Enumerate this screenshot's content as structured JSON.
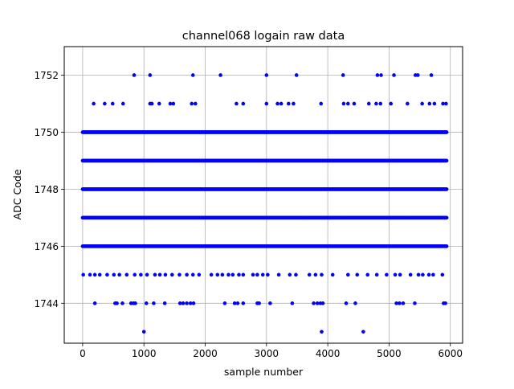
{
  "chart_data": {
    "type": "scatter",
    "title": "channel068 logain raw data",
    "xlabel": "sample number",
    "ylabel": "ADC Code",
    "xlim": [
      -300,
      6200
    ],
    "ylim": [
      1742.6,
      1753.0
    ],
    "xticks": [
      0,
      1000,
      2000,
      3000,
      4000,
      5000,
      6000
    ],
    "xtick_labels": [
      "0",
      "1000",
      "2000",
      "3000",
      "4000",
      "5000",
      "6000"
    ],
    "yticks": [
      1744,
      1746,
      1748,
      1750,
      1752
    ],
    "ytick_labels": [
      "1744",
      "1746",
      "1748",
      "1750",
      "1752"
    ],
    "grid": true,
    "marker_color": "#0000ff",
    "series": [
      {
        "points": [
          [
            1000,
            1743
          ],
          [
            3900,
            1743
          ],
          [
            4580,
            1743
          ],
          [
            200,
            1744
          ],
          [
            530,
            1744
          ],
          [
            560,
            1744
          ],
          [
            650,
            1744
          ],
          [
            790,
            1744
          ],
          [
            830,
            1744
          ],
          [
            860,
            1744
          ],
          [
            1040,
            1744
          ],
          [
            1160,
            1744
          ],
          [
            1340,
            1744
          ],
          [
            1590,
            1744
          ],
          [
            1640,
            1744
          ],
          [
            1700,
            1744
          ],
          [
            1760,
            1744
          ],
          [
            1810,
            1744
          ],
          [
            2320,
            1744
          ],
          [
            2480,
            1744
          ],
          [
            2530,
            1744
          ],
          [
            2620,
            1744
          ],
          [
            2850,
            1744
          ],
          [
            2880,
            1744
          ],
          [
            3060,
            1744
          ],
          [
            3420,
            1744
          ],
          [
            3770,
            1744
          ],
          [
            3830,
            1744
          ],
          [
            3880,
            1744
          ],
          [
            3920,
            1744
          ],
          [
            4300,
            1744
          ],
          [
            4450,
            1744
          ],
          [
            5120,
            1744
          ],
          [
            5170,
            1744
          ],
          [
            5230,
            1744
          ],
          [
            5420,
            1744
          ],
          [
            5890,
            1744
          ],
          [
            5920,
            1744
          ],
          [
            10,
            1745
          ],
          [
            120,
            1745
          ],
          [
            200,
            1745
          ],
          [
            280,
            1745
          ],
          [
            400,
            1745
          ],
          [
            510,
            1745
          ],
          [
            600,
            1745
          ],
          [
            720,
            1745
          ],
          [
            850,
            1745
          ],
          [
            950,
            1745
          ],
          [
            1050,
            1745
          ],
          [
            1180,
            1745
          ],
          [
            1260,
            1745
          ],
          [
            1350,
            1745
          ],
          [
            1460,
            1745
          ],
          [
            1580,
            1745
          ],
          [
            1700,
            1745
          ],
          [
            1800,
            1745
          ],
          [
            1900,
            1745
          ],
          [
            2100,
            1745
          ],
          [
            2200,
            1745
          ],
          [
            2280,
            1745
          ],
          [
            2380,
            1745
          ],
          [
            2450,
            1745
          ],
          [
            2550,
            1745
          ],
          [
            2620,
            1745
          ],
          [
            2780,
            1745
          ],
          [
            2850,
            1745
          ],
          [
            2940,
            1745
          ],
          [
            3020,
            1745
          ],
          [
            3200,
            1745
          ],
          [
            3380,
            1745
          ],
          [
            3480,
            1745
          ],
          [
            3700,
            1745
          ],
          [
            3800,
            1745
          ],
          [
            3900,
            1745
          ],
          [
            4080,
            1745
          ],
          [
            4330,
            1745
          ],
          [
            4480,
            1745
          ],
          [
            4650,
            1745
          ],
          [
            4800,
            1745
          ],
          [
            4960,
            1745
          ],
          [
            5100,
            1745
          ],
          [
            5180,
            1745
          ],
          [
            5350,
            1745
          ],
          [
            5480,
            1745
          ],
          [
            5550,
            1745
          ],
          [
            5650,
            1745
          ],
          [
            5720,
            1745
          ],
          [
            5870,
            1745
          ],
          [
            1100,
            1751
          ],
          [
            1130,
            1751
          ],
          [
            180,
            1751
          ],
          [
            360,
            1751
          ],
          [
            490,
            1751
          ],
          [
            660,
            1751
          ],
          [
            1250,
            1751
          ],
          [
            1430,
            1751
          ],
          [
            1480,
            1751
          ],
          [
            1780,
            1751
          ],
          [
            1840,
            1751
          ],
          [
            2510,
            1751
          ],
          [
            2620,
            1751
          ],
          [
            3000,
            1751
          ],
          [
            3180,
            1751
          ],
          [
            3240,
            1751
          ],
          [
            3360,
            1751
          ],
          [
            3440,
            1751
          ],
          [
            3890,
            1751
          ],
          [
            4260,
            1751
          ],
          [
            4330,
            1751
          ],
          [
            4430,
            1751
          ],
          [
            4670,
            1751
          ],
          [
            4790,
            1751
          ],
          [
            4860,
            1751
          ],
          [
            5030,
            1751
          ],
          [
            5300,
            1751
          ],
          [
            5540,
            1751
          ],
          [
            5660,
            1751
          ],
          [
            5740,
            1751
          ],
          [
            5880,
            1751
          ],
          [
            5930,
            1751
          ],
          [
            840,
            1752
          ],
          [
            1100,
            1752
          ],
          [
            1800,
            1752
          ],
          [
            2250,
            1752
          ],
          [
            3000,
            1752
          ],
          [
            3490,
            1752
          ],
          [
            4250,
            1752
          ],
          [
            4810,
            1752
          ],
          [
            4870,
            1752
          ],
          [
            5080,
            1752
          ],
          [
            5430,
            1752
          ],
          [
            5470,
            1752
          ],
          [
            5690,
            1752
          ]
        ],
        "dense_bands": [
          {
            "y": 1746,
            "x_range": [
              0,
              5940
            ],
            "count": 700
          },
          {
            "y": 1747,
            "x_range": [
              0,
              5940
            ],
            "count": 800
          },
          {
            "y": 1748,
            "x_range": [
              0,
              5940
            ],
            "count": 850
          },
          {
            "y": 1749,
            "x_range": [
              0,
              5940
            ],
            "count": 800
          },
          {
            "y": 1750,
            "x_range": [
              0,
              5940
            ],
            "count": 650
          }
        ]
      }
    ]
  }
}
